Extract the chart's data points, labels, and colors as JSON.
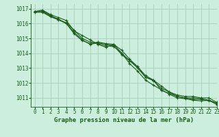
{
  "background_color": "#cceedd",
  "grid_color": "#aaccbb",
  "line_color": "#1a5c1a",
  "title": "Graphe pression niveau de la mer (hPa)",
  "tick_fontsize": 5.5,
  "xlabel_fontsize": 6.5,
  "xlim": [
    -0.5,
    23
  ],
  "ylim": [
    1010.4,
    1017.3
  ],
  "yticks": [
    1011,
    1012,
    1013,
    1014,
    1015,
    1016,
    1017
  ],
  "xticks": [
    0,
    1,
    2,
    3,
    4,
    5,
    6,
    7,
    8,
    9,
    10,
    11,
    12,
    13,
    14,
    15,
    16,
    17,
    18,
    19,
    20,
    21,
    22,
    23
  ],
  "series": [
    [
      1016.8,
      1016.9,
      1016.6,
      1016.4,
      1016.2,
      1015.5,
      1015.2,
      1014.9,
      1014.6,
      1014.4,
      1014.6,
      1014.2,
      1013.6,
      1013.1,
      1012.4,
      1012.2,
      1011.8,
      1011.4,
      1011.2,
      1011.1,
      1011.1,
      1011.0,
      1011.0,
      1010.7
    ],
    [
      1016.8,
      1016.85,
      1016.55,
      1016.25,
      1016.05,
      1015.55,
      1015.0,
      1014.75,
      1014.65,
      1014.5,
      1014.45,
      1014.0,
      1013.5,
      1013.0,
      1012.4,
      1012.15,
      1011.65,
      1011.4,
      1011.1,
      1011.0,
      1011.0,
      1010.95,
      1010.85,
      1010.65
    ],
    [
      1016.8,
      1016.8,
      1016.5,
      1016.3,
      1016.0,
      1015.4,
      1014.9,
      1014.6,
      1014.7,
      1014.6,
      1014.5,
      1013.9,
      1013.5,
      1013.1,
      1012.5,
      1012.2,
      1011.5,
      1011.3,
      1011.1,
      1011.0,
      1010.9,
      1010.9,
      1010.8,
      1010.65
    ],
    [
      1016.75,
      1016.75,
      1016.45,
      1016.25,
      1016.0,
      1015.3,
      1014.85,
      1014.65,
      1014.75,
      1014.65,
      1014.6,
      1014.0,
      1013.3,
      1012.8,
      1012.2,
      1011.85,
      1011.55,
      1011.25,
      1011.0,
      1010.95,
      1010.85,
      1010.8,
      1010.85,
      1010.55
    ]
  ]
}
